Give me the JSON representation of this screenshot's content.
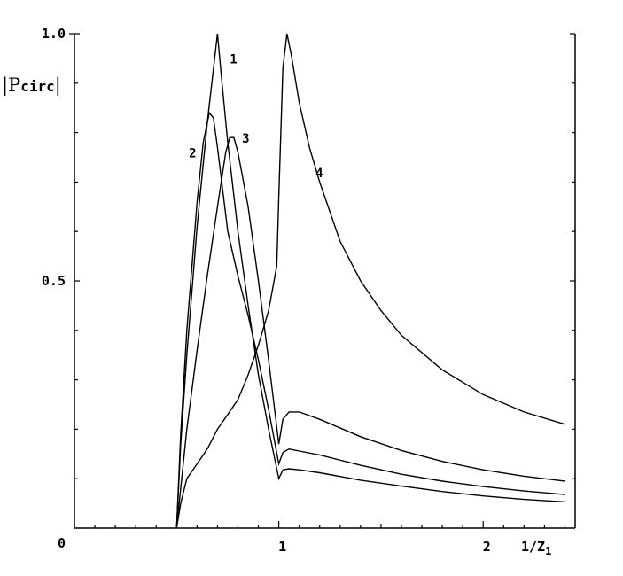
{
  "chart_data": {
    "type": "line",
    "title": "",
    "ylabel": "|P",
    "ylabel_sub": "circ",
    "ylabel_end": "|",
    "xlabel": "1/Z",
    "xlabel_sub": "1",
    "xlim": [
      0,
      2.45
    ],
    "ylim": [
      0,
      1.0
    ],
    "grid": false,
    "y_ticks": [
      {
        "value": 0,
        "label": "0"
      },
      {
        "value": 0.5,
        "label": "0.5"
      },
      {
        "value": 1.0,
        "label": "1.0"
      }
    ],
    "x_ticks": [
      {
        "value": 1,
        "label": "1"
      },
      {
        "value": 2,
        "label": "2"
      }
    ],
    "series": [
      {
        "name": "1",
        "x": [
          0.5,
          0.52,
          0.55,
          0.6,
          0.65,
          0.7,
          0.72,
          0.75,
          0.8,
          0.85,
          0.9,
          0.95,
          1.0,
          1.02,
          1.05,
          1.1,
          1.2,
          1.4,
          1.6,
          1.8,
          2.0,
          2.2,
          2.4
        ],
        "y": [
          0.0,
          0.17,
          0.35,
          0.61,
          0.82,
          1.0,
          0.91,
          0.78,
          0.6,
          0.45,
          0.31,
          0.2,
          0.1,
          0.118,
          0.12,
          0.118,
          0.112,
          0.097,
          0.085,
          0.074,
          0.065,
          0.058,
          0.053
        ]
      },
      {
        "name": "2",
        "x": [
          0.5,
          0.52,
          0.55,
          0.6,
          0.63,
          0.66,
          0.68,
          0.7,
          0.75,
          0.8,
          0.85,
          0.9,
          0.95,
          1.0,
          1.02,
          1.05,
          1.1,
          1.2,
          1.4,
          1.6,
          1.8,
          2.0,
          2.2,
          2.4
        ],
        "y": [
          0.0,
          0.19,
          0.4,
          0.66,
          0.78,
          0.84,
          0.83,
          0.77,
          0.6,
          0.51,
          0.43,
          0.34,
          0.24,
          0.13,
          0.153,
          0.16,
          0.156,
          0.148,
          0.127,
          0.109,
          0.095,
          0.084,
          0.075,
          0.068
        ]
      },
      {
        "name": "3",
        "x": [
          0.5,
          0.55,
          0.6,
          0.65,
          0.7,
          0.74,
          0.76,
          0.78,
          0.8,
          0.85,
          0.9,
          0.95,
          1.0,
          1.02,
          1.05,
          1.1,
          1.2,
          1.4,
          1.6,
          1.8,
          2.0,
          2.2,
          2.4
        ],
        "y": [
          0.0,
          0.2,
          0.36,
          0.51,
          0.65,
          0.76,
          0.79,
          0.79,
          0.76,
          0.65,
          0.5,
          0.34,
          0.17,
          0.22,
          0.235,
          0.235,
          0.22,
          0.185,
          0.157,
          0.135,
          0.118,
          0.105,
          0.095
        ]
      },
      {
        "name": "4",
        "x": [
          0.5,
          0.52,
          0.55,
          0.6,
          0.65,
          0.7,
          0.75,
          0.8,
          0.85,
          0.9,
          0.95,
          0.99,
          1.0,
          1.02,
          1.04,
          1.06,
          1.08,
          1.1,
          1.15,
          1.2,
          1.3,
          1.4,
          1.5,
          1.6,
          1.8,
          2.0,
          2.2,
          2.4
        ],
        "y": [
          0.0,
          0.05,
          0.1,
          0.13,
          0.16,
          0.2,
          0.23,
          0.26,
          0.31,
          0.37,
          0.44,
          0.53,
          0.67,
          0.93,
          1.0,
          0.96,
          0.91,
          0.86,
          0.77,
          0.7,
          0.58,
          0.5,
          0.44,
          0.39,
          0.32,
          0.27,
          0.235,
          0.21
        ]
      }
    ],
    "curve_labels": [
      {
        "text": "1",
        "x": 0.76,
        "y": 0.94
      },
      {
        "text": "2",
        "x": 0.56,
        "y": 0.75
      },
      {
        "text": "3",
        "x": 0.82,
        "y": 0.78
      },
      {
        "text": "4",
        "x": 1.18,
        "y": 0.71
      }
    ]
  }
}
